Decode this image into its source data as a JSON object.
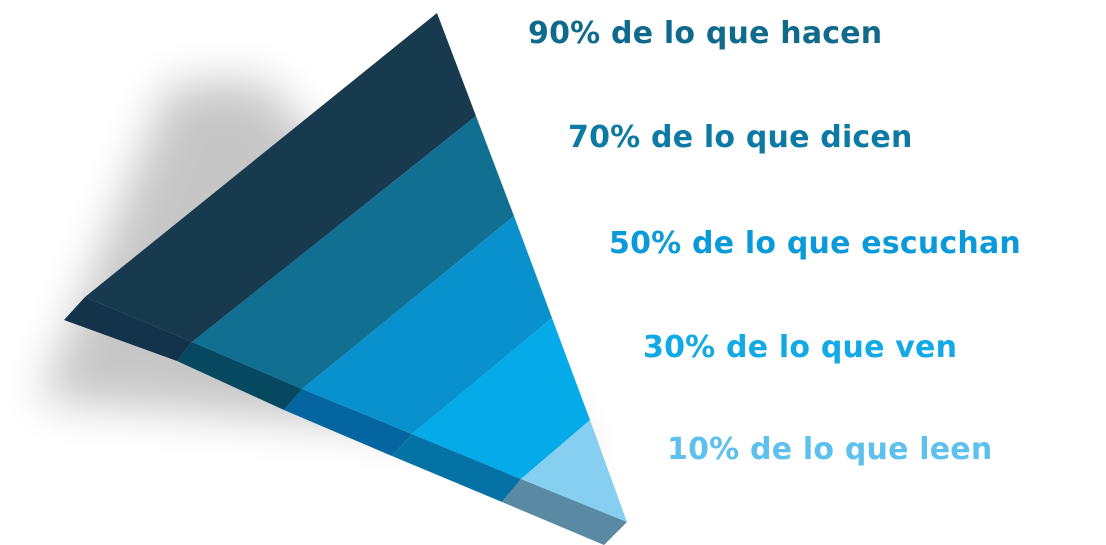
{
  "levels": [
    {
      "label": "90% de lo que hacen",
      "face_color": "#183a4f",
      "side_color": "#13334a",
      "text_color": "#106a8c"
    },
    {
      "label": "70% de lo que dicen",
      "face_color": "#117091",
      "side_color": "#05485f",
      "text_color": "#0d7aa6"
    },
    {
      "label": "50% de lo que escuchan",
      "face_color": "#0891cc",
      "side_color": "#0465a0",
      "text_color": "#0b9ad9"
    },
    {
      "label": "30% de lo que ven",
      "face_color": "#04abe8",
      "side_color": "#0572a6",
      "text_color": "#11a9e6"
    },
    {
      "label": "10% de lo que leen",
      "face_color": "#86cff0",
      "side_color": "#5a8aa3",
      "text_color": "#5ec0ec"
    }
  ]
}
